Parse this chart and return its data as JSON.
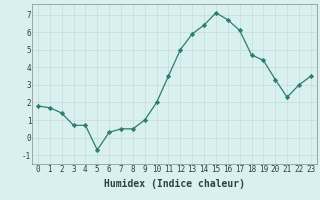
{
  "x": [
    0,
    1,
    2,
    3,
    4,
    5,
    6,
    7,
    8,
    9,
    10,
    11,
    12,
    13,
    14,
    15,
    16,
    17,
    18,
    19,
    20,
    21,
    22,
    23
  ],
  "y": [
    1.8,
    1.7,
    1.4,
    0.7,
    0.7,
    -0.7,
    0.3,
    0.5,
    0.5,
    1.0,
    2.0,
    3.5,
    5.0,
    5.9,
    6.4,
    7.1,
    6.7,
    6.1,
    4.7,
    4.4,
    3.3,
    2.3,
    3.0,
    3.5
  ],
  "xlabel": "Humidex (Indice chaleur)",
  "ylim": [
    -1.5,
    7.6
  ],
  "xlim": [
    -0.5,
    23.5
  ],
  "yticks": [
    -1,
    0,
    1,
    2,
    3,
    4,
    5,
    6,
    7
  ],
  "xticks": [
    0,
    1,
    2,
    3,
    4,
    5,
    6,
    7,
    8,
    9,
    10,
    11,
    12,
    13,
    14,
    15,
    16,
    17,
    18,
    19,
    20,
    21,
    22,
    23
  ],
  "line_color": "#2e7d6e",
  "marker": "D",
  "marker_size": 2.2,
  "background_color": "#d9f0f0",
  "grid_color": "#c8d8d8",
  "spine_color": "#888888",
  "tick_label_color": "#2e4040",
  "xlabel_color": "#2e4040",
  "tick_fontsize": 5.5,
  "xlabel_fontsize": 7.0
}
